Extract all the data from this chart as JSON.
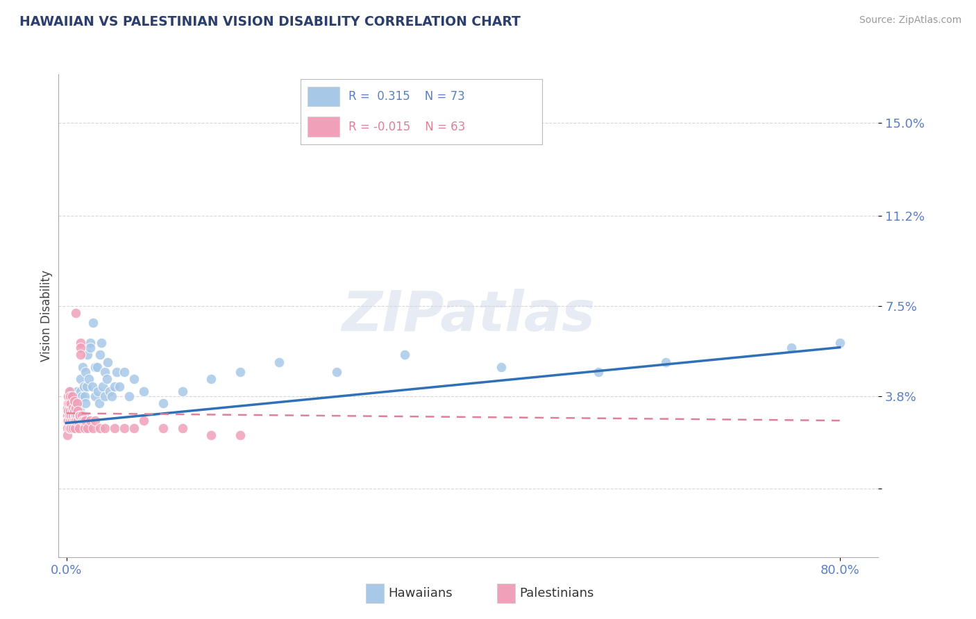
{
  "title": "HAWAIIAN VS PALESTINIAN VISION DISABILITY CORRELATION CHART",
  "source": "Source: ZipAtlas.com",
  "ylabel": "Vision Disability",
  "ytick_vals": [
    0.0,
    0.038,
    0.075,
    0.112,
    0.15
  ],
  "ytick_labels": [
    "",
    "3.8%",
    "7.5%",
    "11.2%",
    "15.0%"
  ],
  "xtick_vals": [
    0.0,
    0.8
  ],
  "xtick_labels": [
    "0.0%",
    "80.0%"
  ],
  "xlim": [
    -0.008,
    0.84
  ],
  "ylim": [
    -0.028,
    0.17
  ],
  "hawaiians_R": 0.315,
  "hawaiians_N": 73,
  "palestinians_R": -0.015,
  "palestinians_N": 63,
  "dot_color_hawaiians": "#a8c8e8",
  "dot_color_palestinians": "#f0a0b8",
  "line_color_hawaiians": "#3070b8",
  "line_color_palestinians": "#e08098",
  "legend_label_hawaiians": "Hawaiians",
  "legend_label_palestinians": "Palestinians",
  "watermark": "ZIPatlas",
  "background_color": "#ffffff",
  "title_color": "#2c3e6b",
  "axis_tick_color": "#5b7fc4",
  "ylabel_color": "#444444",
  "grid_color": "#cccccc",
  "hawaiians_x": [
    0.001,
    0.001,
    0.002,
    0.002,
    0.003,
    0.003,
    0.003,
    0.004,
    0.004,
    0.005,
    0.005,
    0.005,
    0.006,
    0.006,
    0.007,
    0.008,
    0.008,
    0.009,
    0.01,
    0.01,
    0.011,
    0.012,
    0.013,
    0.014,
    0.015,
    0.015,
    0.016,
    0.017,
    0.018,
    0.018,
    0.019,
    0.02,
    0.02,
    0.021,
    0.022,
    0.023,
    0.025,
    0.025,
    0.027,
    0.028,
    0.03,
    0.03,
    0.032,
    0.033,
    0.034,
    0.035,
    0.036,
    0.038,
    0.04,
    0.04,
    0.042,
    0.043,
    0.045,
    0.047,
    0.05,
    0.052,
    0.055,
    0.06,
    0.065,
    0.07,
    0.08,
    0.1,
    0.12,
    0.15,
    0.18,
    0.22,
    0.28,
    0.35,
    0.45,
    0.55,
    0.62,
    0.75,
    0.8
  ],
  "hawaiians_y": [
    0.032,
    0.028,
    0.03,
    0.035,
    0.033,
    0.028,
    0.025,
    0.038,
    0.03,
    0.04,
    0.032,
    0.025,
    0.035,
    0.038,
    0.03,
    0.032,
    0.036,
    0.03,
    0.025,
    0.038,
    0.04,
    0.035,
    0.038,
    0.032,
    0.04,
    0.045,
    0.038,
    0.05,
    0.042,
    0.03,
    0.038,
    0.048,
    0.035,
    0.042,
    0.055,
    0.045,
    0.06,
    0.058,
    0.042,
    0.068,
    0.038,
    0.05,
    0.05,
    0.04,
    0.035,
    0.055,
    0.06,
    0.042,
    0.048,
    0.038,
    0.045,
    0.052,
    0.04,
    0.038,
    0.042,
    0.048,
    0.042,
    0.048,
    0.038,
    0.045,
    0.04,
    0.035,
    0.04,
    0.045,
    0.048,
    0.052,
    0.048,
    0.055,
    0.05,
    0.048,
    0.052,
    0.058,
    0.06
  ],
  "palestinians_x": [
    0.001,
    0.001,
    0.001,
    0.001,
    0.001,
    0.002,
    0.002,
    0.002,
    0.002,
    0.003,
    0.003,
    0.003,
    0.003,
    0.004,
    0.004,
    0.004,
    0.005,
    0.005,
    0.005,
    0.006,
    0.006,
    0.006,
    0.007,
    0.007,
    0.007,
    0.008,
    0.008,
    0.008,
    0.009,
    0.009,
    0.01,
    0.01,
    0.01,
    0.011,
    0.011,
    0.012,
    0.012,
    0.013,
    0.013,
    0.014,
    0.015,
    0.015,
    0.015,
    0.016,
    0.017,
    0.018,
    0.019,
    0.02,
    0.022,
    0.025,
    0.028,
    0.03,
    0.035,
    0.04,
    0.05,
    0.06,
    0.07,
    0.08,
    0.1,
    0.12,
    0.15,
    0.18,
    0.01
  ],
  "palestinians_y": [
    0.03,
    0.033,
    0.028,
    0.025,
    0.022,
    0.035,
    0.032,
    0.028,
    0.038,
    0.03,
    0.035,
    0.025,
    0.04,
    0.032,
    0.038,
    0.028,
    0.03,
    0.035,
    0.025,
    0.032,
    0.038,
    0.028,
    0.033,
    0.03,
    0.025,
    0.032,
    0.036,
    0.028,
    0.03,
    0.025,
    0.033,
    0.03,
    0.028,
    0.03,
    0.035,
    0.028,
    0.032,
    0.03,
    0.025,
    0.03,
    0.06,
    0.058,
    0.055,
    0.03,
    0.028,
    0.028,
    0.025,
    0.028,
    0.025,
    0.028,
    0.025,
    0.028,
    0.025,
    0.025,
    0.025,
    0.025,
    0.025,
    0.028,
    0.025,
    0.025,
    0.022,
    0.022,
    0.072
  ],
  "hawaiians_line_x": [
    0.0,
    0.8
  ],
  "hawaiians_line_y": [
    0.027,
    0.058
  ],
  "palestinians_line_x": [
    0.0,
    0.8
  ],
  "palestinians_line_y": [
    0.031,
    0.028
  ]
}
